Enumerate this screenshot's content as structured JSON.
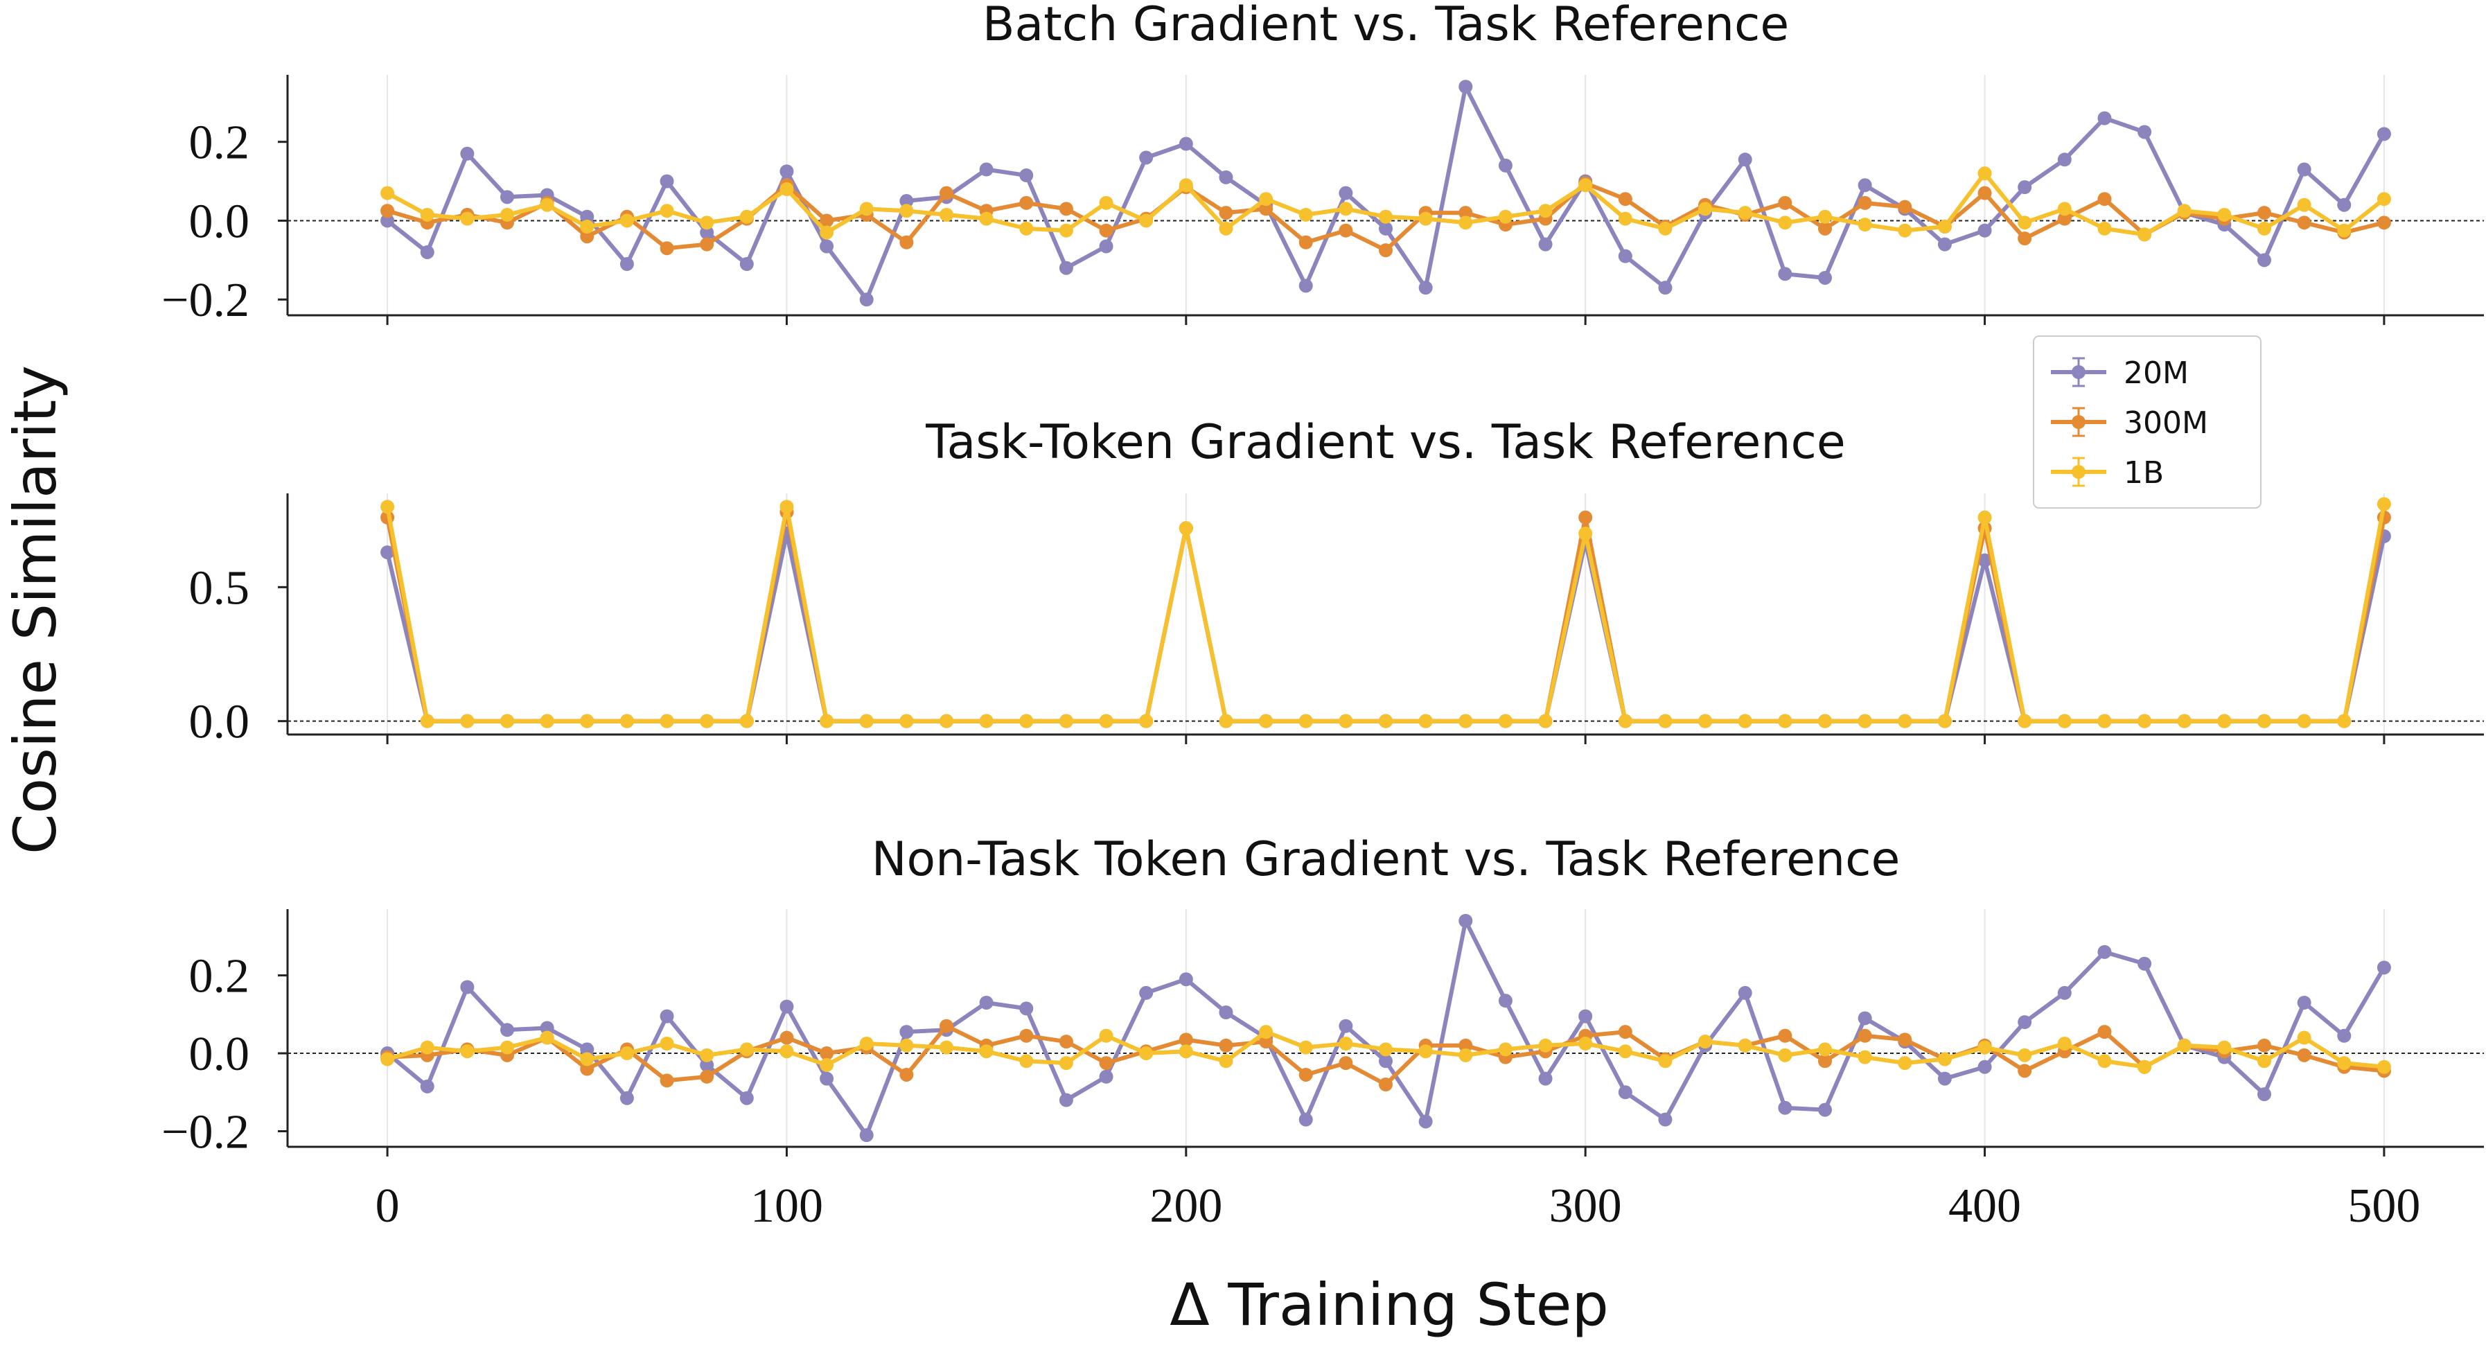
{
  "ylabel": "Cosine Similarity",
  "xlabel": "Δ Training Step",
  "colors": {
    "20M": "#8c84bd",
    "300M": "#e48a33",
    "1B": "#f7c12d"
  },
  "legend": {
    "position": "top-right",
    "entries": [
      "20M",
      "300M",
      "1B"
    ]
  },
  "chart_data": [
    {
      "type": "line",
      "title": "Batch Gradient vs. Task Reference",
      "x": [
        0,
        10,
        20,
        30,
        40,
        50,
        60,
        70,
        80,
        90,
        100,
        110,
        120,
        130,
        140,
        150,
        160,
        170,
        180,
        190,
        200,
        210,
        220,
        230,
        240,
        250,
        260,
        270,
        280,
        290,
        300,
        310,
        320,
        330,
        340,
        350,
        360,
        370,
        380,
        390,
        400,
        410,
        420,
        430,
        440,
        450,
        460,
        470,
        480,
        490,
        500
      ],
      "xlim": [
        -25,
        525
      ],
      "ylim": [
        -0.24,
        0.37
      ],
      "yticks": [
        -0.2,
        0.0,
        0.2
      ],
      "ytick_labels": [
        "−0.2",
        "0.0",
        "0.2"
      ],
      "reference_line": 0,
      "series": [
        {
          "name": "20M",
          "values": [
            0.0,
            -0.08,
            0.17,
            0.06,
            0.065,
            0.01,
            -0.11,
            0.1,
            -0.03,
            -0.11,
            0.125,
            -0.065,
            -0.2,
            0.05,
            0.06,
            0.13,
            0.115,
            -0.12,
            -0.065,
            0.16,
            0.195,
            0.11,
            0.04,
            -0.165,
            0.07,
            -0.02,
            -0.17,
            0.34,
            0.14,
            -0.06,
            0.1,
            -0.09,
            -0.17,
            0.02,
            0.155,
            -0.135,
            -0.145,
            0.09,
            0.03,
            -0.06,
            -0.025,
            0.085,
            0.155,
            0.26,
            0.225,
            0.02,
            -0.01,
            -0.1,
            0.13,
            0.04,
            0.22
          ]
        },
        {
          "name": "300M",
          "values": [
            0.025,
            -0.005,
            0.015,
            -0.005,
            0.045,
            -0.04,
            0.01,
            -0.07,
            -0.06,
            0.005,
            0.09,
            -0.0,
            0.015,
            -0.055,
            0.07,
            0.025,
            0.045,
            0.03,
            -0.025,
            0.005,
            0.085,
            0.02,
            0.03,
            -0.055,
            -0.025,
            -0.075,
            0.02,
            0.02,
            -0.01,
            0.005,
            0.095,
            0.055,
            -0.015,
            0.04,
            0.015,
            0.045,
            -0.02,
            0.045,
            0.035,
            -0.015,
            0.07,
            -0.045,
            0.005,
            0.055,
            -0.035,
            0.02,
            0.005,
            0.02,
            -0.005,
            -0.03,
            -0.005
          ]
        },
        {
          "name": "1B",
          "values": [
            0.07,
            0.015,
            0.005,
            0.015,
            0.04,
            -0.015,
            0.0,
            0.025,
            -0.005,
            0.01,
            0.08,
            -0.03,
            0.03,
            0.025,
            0.015,
            0.005,
            -0.02,
            -0.025,
            0.045,
            0.0,
            0.09,
            -0.02,
            0.055,
            0.015,
            0.03,
            0.01,
            0.005,
            -0.005,
            0.01,
            0.025,
            0.09,
            0.005,
            -0.02,
            0.03,
            0.02,
            -0.005,
            0.01,
            -0.01,
            -0.025,
            -0.015,
            0.12,
            -0.005,
            0.03,
            -0.02,
            -0.035,
            0.025,
            0.015,
            -0.02,
            0.04,
            -0.025,
            0.055
          ]
        }
      ]
    },
    {
      "type": "line",
      "title": "Task-Token Gradient vs. Task Reference",
      "x": [
        0,
        10,
        20,
        30,
        40,
        50,
        60,
        70,
        80,
        90,
        100,
        110,
        120,
        130,
        140,
        150,
        160,
        170,
        180,
        190,
        200,
        210,
        220,
        230,
        240,
        250,
        260,
        270,
        280,
        290,
        300,
        310,
        320,
        330,
        340,
        350,
        360,
        370,
        380,
        390,
        400,
        410,
        420,
        430,
        440,
        450,
        460,
        470,
        480,
        490,
        500
      ],
      "xlim": [
        -25,
        525
      ],
      "ylim": [
        -0.05,
        0.85
      ],
      "yticks": [
        0.0,
        0.5
      ],
      "ytick_labels": [
        "0.0",
        "0.5"
      ],
      "reference_line": 0,
      "series": [
        {
          "name": "20M",
          "values": [
            0.63,
            0,
            0,
            0,
            0,
            0,
            0,
            0,
            0,
            0,
            0.7,
            0,
            0,
            0,
            0,
            0,
            0,
            0,
            0,
            0,
            0.72,
            0,
            0,
            0,
            0,
            0,
            0,
            0,
            0,
            0,
            0.67,
            0,
            0,
            0,
            0,
            0,
            0,
            0,
            0,
            0,
            0.6,
            0,
            0,
            0,
            0,
            0,
            0,
            0,
            0,
            0,
            0.69
          ]
        },
        {
          "name": "300M",
          "values": [
            0.76,
            0,
            0,
            0,
            0,
            0,
            0,
            0,
            0,
            0,
            0.78,
            0,
            0,
            0,
            0,
            0,
            0,
            0,
            0,
            0,
            0.72,
            0,
            0,
            0,
            0,
            0,
            0,
            0,
            0,
            0,
            0.76,
            0,
            0,
            0,
            0,
            0,
            0,
            0,
            0,
            0,
            0.72,
            0,
            0,
            0,
            0,
            0,
            0,
            0,
            0,
            0,
            0.76
          ]
        },
        {
          "name": "1B",
          "values": [
            0.8,
            0,
            0,
            0,
            0,
            0,
            0,
            0,
            0,
            0,
            0.8,
            0,
            0,
            0,
            0,
            0,
            0,
            0,
            0,
            0,
            0.72,
            0,
            0,
            0,
            0,
            0,
            0,
            0,
            0,
            0,
            0.7,
            0,
            0,
            0,
            0,
            0,
            0,
            0,
            0,
            0,
            0.76,
            0,
            0,
            0,
            0,
            0,
            0,
            0,
            0,
            0,
            0.81
          ]
        }
      ]
    },
    {
      "type": "line",
      "title": "Non-Task Token Gradient vs. Task Reference",
      "x": [
        0,
        10,
        20,
        30,
        40,
        50,
        60,
        70,
        80,
        90,
        100,
        110,
        120,
        130,
        140,
        150,
        160,
        170,
        180,
        190,
        200,
        210,
        220,
        230,
        240,
        250,
        260,
        270,
        280,
        290,
        300,
        310,
        320,
        330,
        340,
        350,
        360,
        370,
        380,
        390,
        400,
        410,
        420,
        430,
        440,
        450,
        460,
        470,
        480,
        490,
        500
      ],
      "xlim": [
        -25,
        525
      ],
      "ylim": [
        -0.24,
        0.37
      ],
      "yticks": [
        -0.2,
        0.0,
        0.2
      ],
      "ytick_labels": [
        "−0.2",
        "0.0",
        "0.2"
      ],
      "xticks": [
        0,
        100,
        200,
        300,
        400,
        500
      ],
      "xtick_labels": [
        "0",
        "100",
        "200",
        "300",
        "400",
        "500"
      ],
      "reference_line": 0,
      "series": [
        {
          "name": "20M",
          "values": [
            0.0,
            -0.085,
            0.17,
            0.06,
            0.065,
            0.01,
            -0.115,
            0.095,
            -0.03,
            -0.115,
            0.12,
            -0.065,
            -0.21,
            0.055,
            0.06,
            0.13,
            0.115,
            -0.12,
            -0.06,
            0.155,
            0.19,
            0.105,
            0.04,
            -0.17,
            0.07,
            -0.02,
            -0.175,
            0.34,
            0.135,
            -0.065,
            0.095,
            -0.1,
            -0.17,
            0.02,
            0.155,
            -0.14,
            -0.145,
            0.09,
            0.03,
            -0.065,
            -0.035,
            0.08,
            0.155,
            0.26,
            0.23,
            0.02,
            -0.01,
            -0.105,
            0.13,
            0.045,
            0.22
          ]
        },
        {
          "name": "300M",
          "values": [
            -0.01,
            -0.005,
            0.01,
            -0.005,
            0.04,
            -0.04,
            0.01,
            -0.07,
            -0.06,
            0.005,
            0.04,
            0.0,
            0.015,
            -0.055,
            0.07,
            0.02,
            0.045,
            0.03,
            -0.025,
            0.005,
            0.035,
            0.02,
            0.03,
            -0.055,
            -0.025,
            -0.08,
            0.02,
            0.02,
            -0.01,
            0.005,
            0.045,
            0.055,
            -0.015,
            0.03,
            0.02,
            0.045,
            -0.02,
            0.045,
            0.035,
            -0.015,
            0.02,
            -0.045,
            0.005,
            0.055,
            -0.035,
            0.02,
            0.005,
            0.02,
            -0.005,
            -0.035,
            -0.045
          ]
        },
        {
          "name": "1B",
          "values": [
            -0.015,
            0.015,
            0.005,
            0.015,
            0.04,
            -0.015,
            0.0,
            0.025,
            -0.005,
            0.01,
            0.005,
            -0.03,
            0.025,
            0.02,
            0.015,
            0.005,
            -0.02,
            -0.025,
            0.045,
            0.0,
            0.005,
            -0.02,
            0.055,
            0.015,
            0.025,
            0.01,
            0.005,
            -0.005,
            0.01,
            0.02,
            0.025,
            0.005,
            -0.02,
            0.03,
            0.02,
            -0.005,
            0.01,
            -0.01,
            -0.025,
            -0.015,
            0.015,
            -0.005,
            0.025,
            -0.02,
            -0.035,
            0.02,
            0.015,
            -0.02,
            0.04,
            -0.025,
            -0.035
          ]
        }
      ]
    }
  ]
}
